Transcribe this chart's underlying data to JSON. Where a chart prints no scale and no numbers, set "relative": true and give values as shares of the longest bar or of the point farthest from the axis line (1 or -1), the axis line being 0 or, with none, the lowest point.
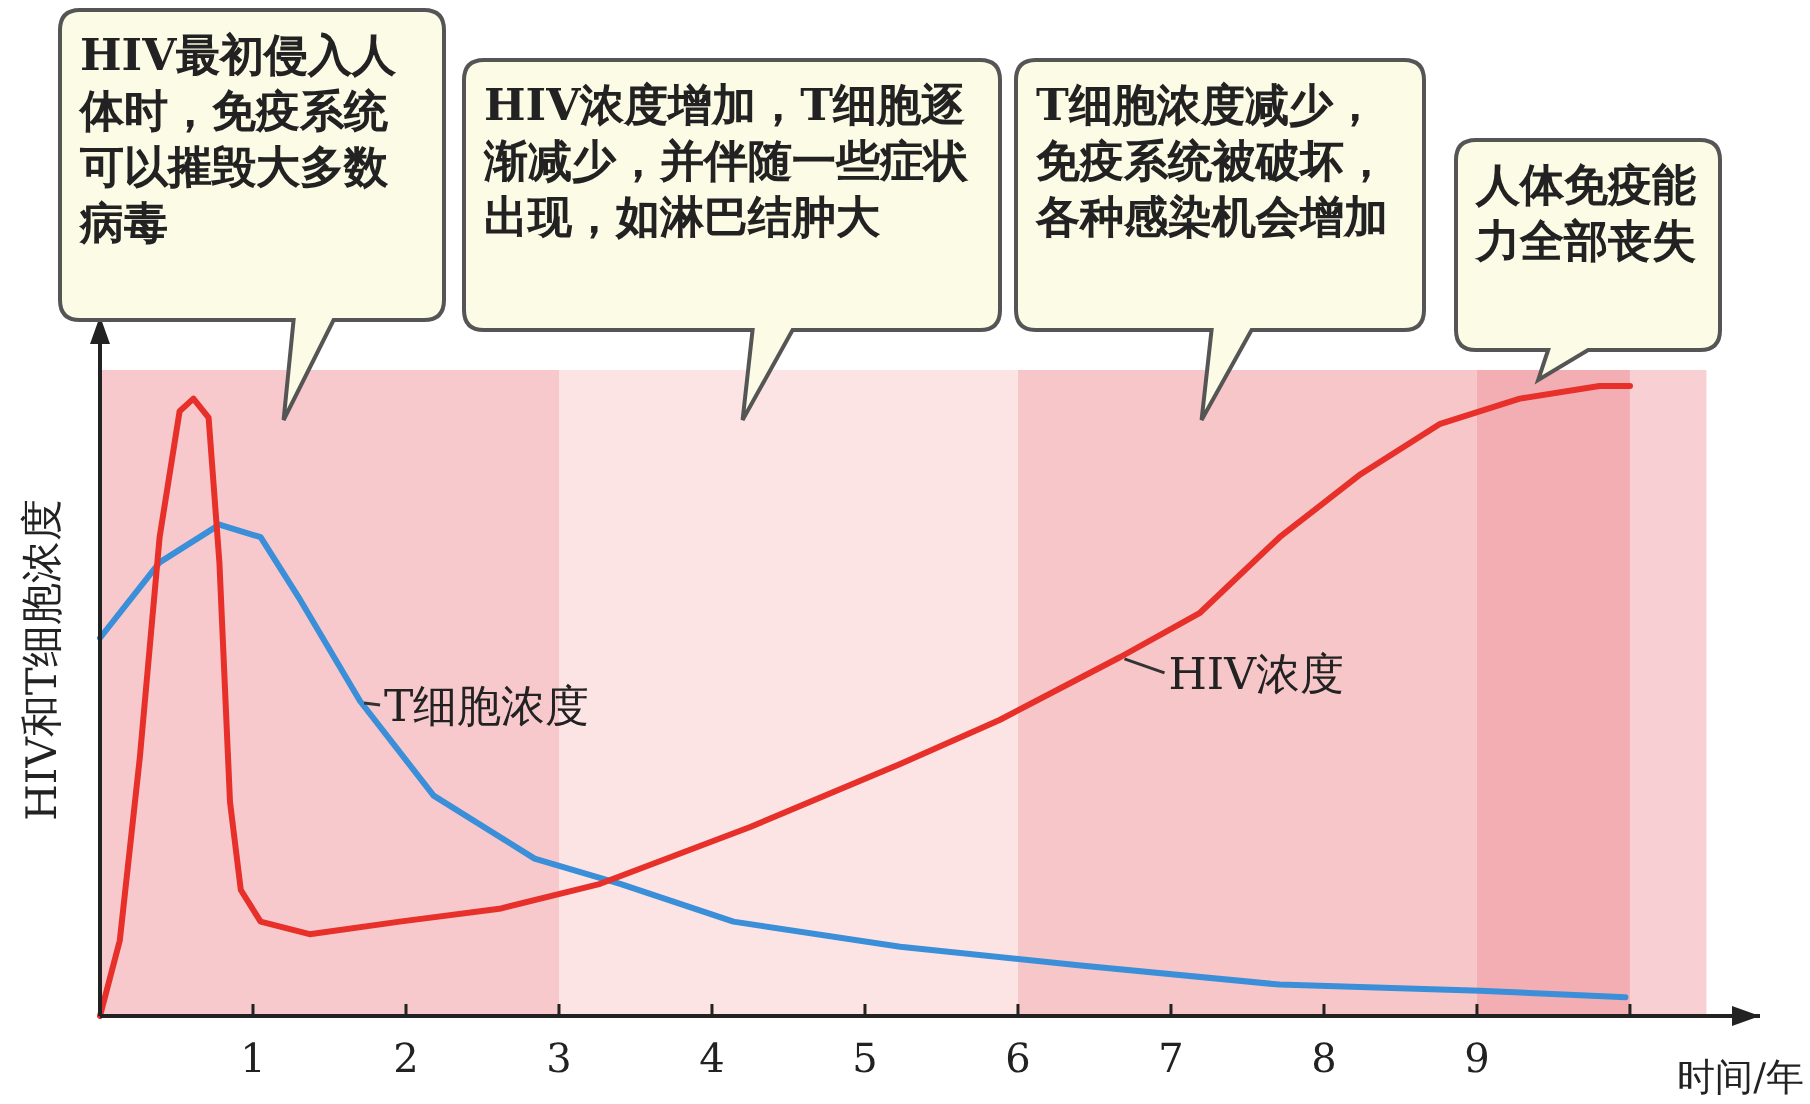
{
  "chart_data": {
    "type": "line",
    "relative": true,
    "xlabel": "时间/年",
    "ylabel": "HIV和T细胞浓度",
    "xlim": [
      0,
      10.85
    ],
    "xticks": [
      1,
      2,
      3,
      4,
      5,
      6,
      7,
      8,
      9,
      {
        "value": 10,
        "label": null
      }
    ],
    "legend": false,
    "grid": false,
    "series": [
      {
        "name": "T细胞浓度",
        "color": "#3a8fd8",
        "x": [
          0,
          0.39,
          0.78,
          1.05,
          1.31,
          1.7,
          2.18,
          2.84,
          3.4,
          4.14,
          5.23,
          6.41,
          7.71,
          9.02,
          9.97
        ],
        "values": [
          0.6,
          0.72,
          0.78,
          0.76,
          0.66,
          0.5,
          0.35,
          0.25,
          0.21,
          0.15,
          0.11,
          0.08,
          0.05,
          0.04,
          0.03
        ]
      },
      {
        "name": "HIV浓度",
        "color": "#e8302a",
        "x": [
          0,
          0.13,
          0.26,
          0.39,
          0.52,
          0.61,
          0.71,
          0.78,
          0.85,
          0.92,
          1.05,
          1.37,
          1.96,
          2.61,
          3.27,
          4.25,
          5.23,
          5.88,
          6.67,
          7.19,
          7.71,
          8.24,
          8.76,
          9.28,
          9.8,
          10.0
        ],
        "values": [
          0,
          0.12,
          0.41,
          0.76,
          0.96,
          0.98,
          0.95,
          0.72,
          0.34,
          0.2,
          0.15,
          0.13,
          0.15,
          0.17,
          0.21,
          0.3,
          0.4,
          0.47,
          0.57,
          0.64,
          0.76,
          0.86,
          0.94,
          0.98,
          1.0,
          1.0
        ]
      }
    ],
    "bands": [
      {
        "axis": "x",
        "from": 0,
        "to": 3,
        "label": "HIV最初侵入人体时，免疫系统可以摧毁大多数病毒",
        "color": "#f7c9cc"
      },
      {
        "axis": "x",
        "from": 3,
        "to": 6,
        "label": "HIV浓度增加，T细胞逐渐减少，并伴随一些症状出现，如淋巴结肿大",
        "color": "#fce4e5"
      },
      {
        "axis": "x",
        "from": 6,
        "to": 9,
        "label": "T细胞浓度减少，免疫系统被破坏，各种感染机会增加",
        "color": "#f7c6c9"
      },
      {
        "axis": "x",
        "from": 9,
        "to": 10,
        "label": "人体免疫能力全部丧失",
        "color": "#f2aeb3"
      },
      {
        "axis": "x",
        "from": 10,
        "to": 10.5,
        "color": "#f8d0d3"
      }
    ]
  }
}
